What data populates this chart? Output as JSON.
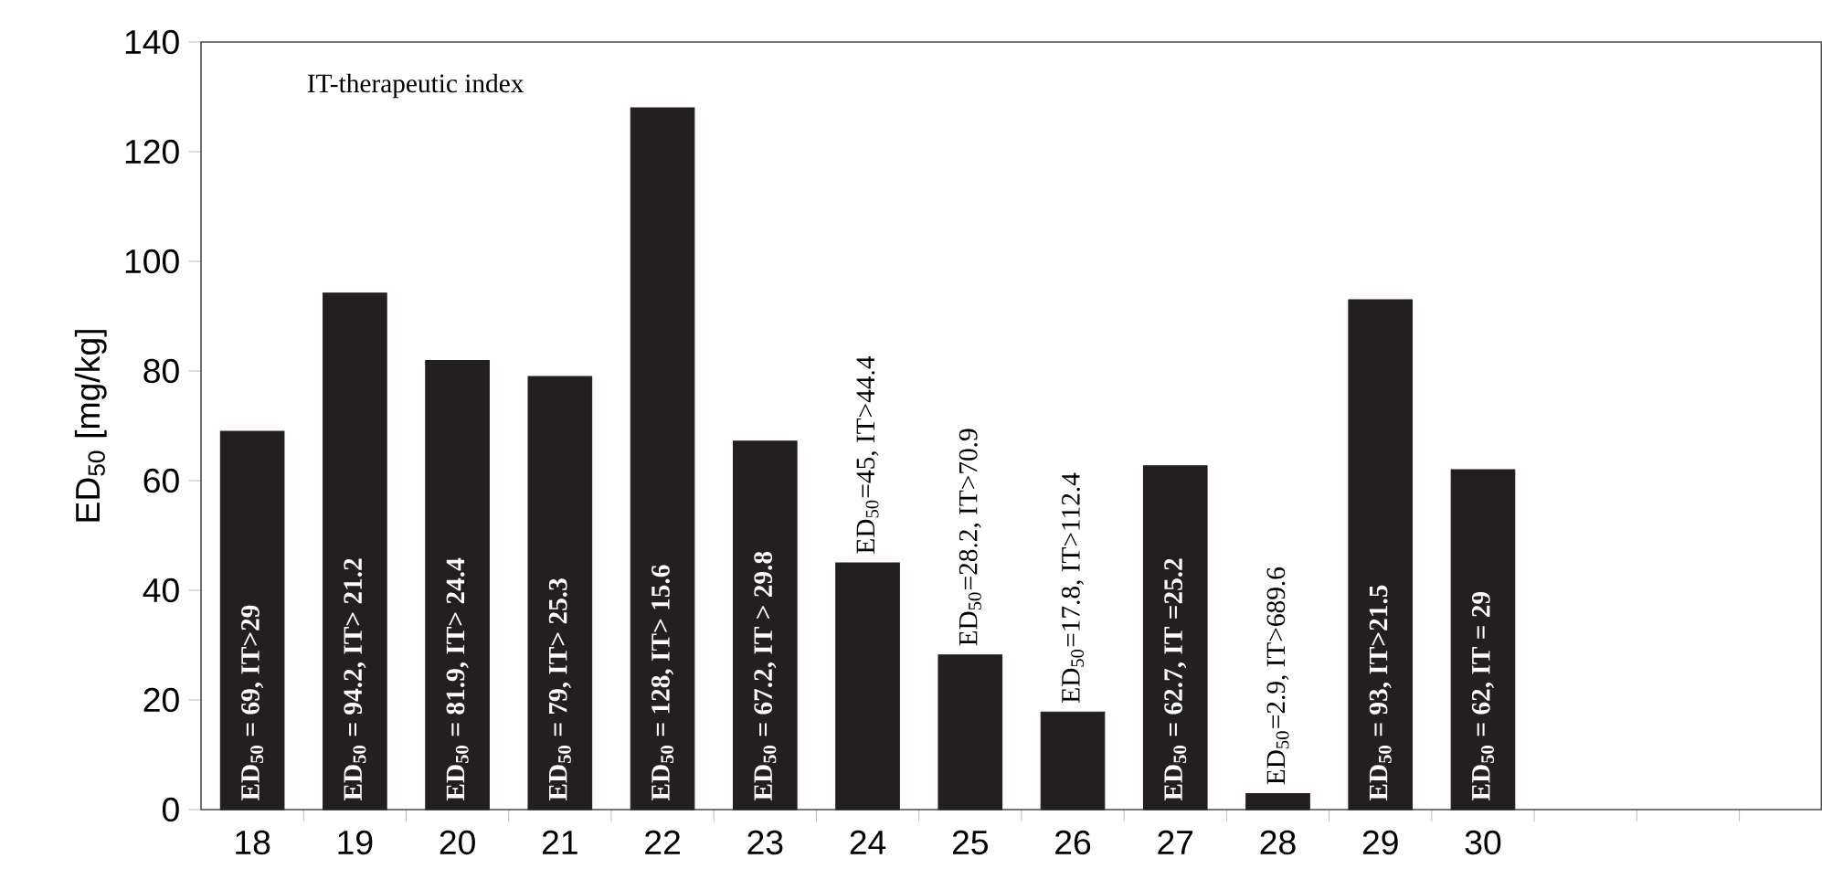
{
  "chart_data": {
    "type": "bar",
    "ylabel": "ED$_{50}$ [mg/kg]",
    "categories": [
      "18",
      "19",
      "20",
      "21",
      "22",
      "23",
      "24",
      "25",
      "26",
      "27",
      "28",
      "29",
      "30",
      null,
      null,
      null
    ],
    "values": [
      69,
      94.2,
      81.9,
      79,
      128,
      67.2,
      45,
      28.2,
      17.8,
      62.7,
      2.9,
      93,
      62,
      null,
      null,
      null
    ],
    "value_labels": [
      "ED$_{50}$ = 69, IT>29",
      "ED$_{50}$ = 94.2, IT> 21.2",
      "ED$_{50}$ = 81.9, IT> 24.4",
      "ED$_{50}$ = 79, IT> 25.3",
      "ED$_{50}$ = 128, IT> 15.6",
      "ED$_{50}$ = 67.2, IT > 29.8",
      "ED$_{50}$=45, IT>44.4",
      "ED$_{50}$=28.2, IT>70.9",
      "ED$_{50}$=17.8, IT>112.4",
      "ED$_{50}$ = 62.7, IT =25.2",
      "ED$_{50}$=2.9, IT>689.6",
      "ED$_{50}$ = 93, IT>21.5",
      "ED$_{50}$ = 62, IT = 29",
      null,
      null,
      null
    ],
    "color": "#231f20",
    "ylim": [
      0,
      140
    ],
    "yticks": [
      0,
      20,
      40,
      60,
      80,
      100,
      120,
      140
    ],
    "annotations": [
      "IT-therapeutic index"
    ]
  }
}
